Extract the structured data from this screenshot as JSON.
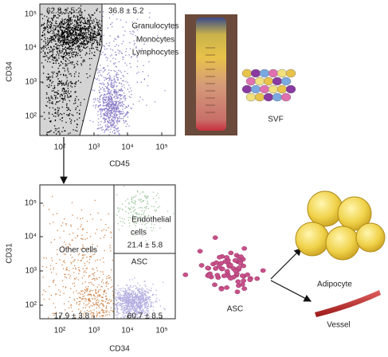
{
  "top_plot": {
    "y_label": "CD34",
    "x_label": "CD45",
    "y_ticks": [
      "10⁵",
      "10⁴",
      "10³",
      "10²"
    ],
    "x_ticks": [
      "10²",
      "10³",
      "10⁴",
      "10⁵"
    ],
    "gated_left": "62.8 ± 5.2",
    "gated_right": "36.8 ± 5.2",
    "populations": [
      "Granulocytes",
      "Monocytes",
      "Lymphocytes"
    ]
  },
  "svf_label": "SVF",
  "bottom_plot": {
    "y_label": "CD31",
    "x_label": "CD34",
    "y_ticks": [
      "10⁵",
      "10⁴",
      "10³",
      "10²"
    ],
    "x_ticks": [
      "10²",
      "10³",
      "10⁴",
      "10⁵"
    ],
    "endothelial_label": [
      "Endothelial",
      "cells"
    ],
    "endothelial_value": "21.4 ± 5.8",
    "asc_label": "ASC",
    "other_label": "Other cells",
    "other_value": "17.9 ± 3.8",
    "asc_value": "60.7 ± 8.5"
  },
  "asc_label": "ASC",
  "adipocyte_label": "Adipocyte",
  "vessel_label": "Vessel"
}
